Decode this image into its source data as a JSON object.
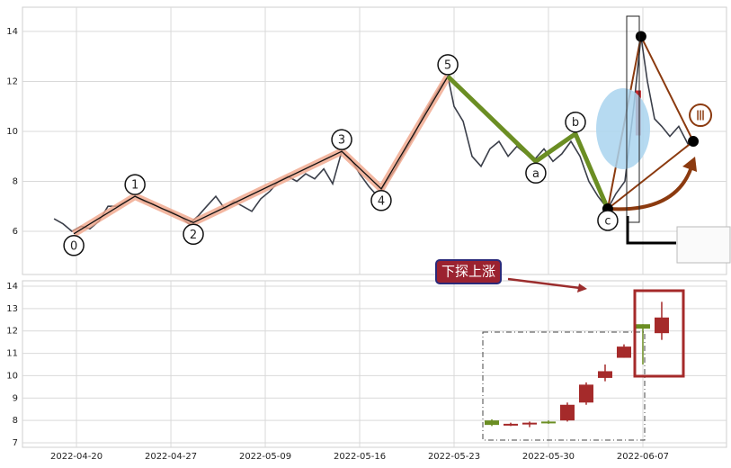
{
  "chart_data": [
    {
      "type": "line",
      "ylim": [
        4.27,
        14.97
      ],
      "yticks": [
        6,
        8,
        10,
        12,
        14
      ],
      "grid": true,
      "series": [
        {
          "color": "#3b3f4a",
          "x": [
            -1.19,
            -0.71,
            -0.24,
            0.24,
            0.71,
            1.19,
            1.67,
            2.14,
            2.62,
            3.1,
            3.57,
            4.05,
            4.52,
            5,
            5.48,
            5.95,
            6.43,
            6.9,
            7.38,
            7.86,
            8.33,
            8.81,
            9.29,
            9.76,
            10.24,
            10.71,
            11.19,
            11.67,
            12.14,
            12.62,
            13.1,
            13.57,
            14.05,
            14.52,
            15,
            15.48,
            15.95,
            16.43,
            16.9,
            17.38,
            17.86,
            18.33,
            18.81,
            19.29,
            19.67,
            20,
            20.48,
            20.95,
            21.43,
            21.9,
            22.38,
            22.86,
            23.33,
            23.81,
            24.29,
            24.76,
            25.24,
            25.71,
            26.19,
            26.67,
            27.14,
            27.62,
            28.14,
            28.57,
            29.05,
            29.52,
            29.9,
            30.24,
            30.62,
            31,
            31.43,
            31.9,
            32.38,
            32.67
          ],
          "values": [
            6.5,
            6.3,
            6.0,
            6.2,
            6.1,
            6.4,
            7.0,
            7.0,
            7.2,
            7.4,
            7.2,
            7.1,
            6.9,
            6.8,
            6.6,
            6.3,
            6.6,
            7.0,
            7.4,
            6.9,
            7.2,
            7.0,
            6.8,
            7.3,
            7.6,
            8.0,
            8.2,
            8.0,
            8.3,
            8.1,
            8.5,
            7.9,
            9.2,
            8.9,
            8.3,
            7.8,
            7.4,
            8.0,
            8.5,
            9.2,
            9.8,
            10.6,
            11.2,
            11.8,
            12.2,
            11.0,
            10.4,
            9.0,
            8.6,
            9.3,
            9.6,
            9.0,
            9.4,
            9.1,
            8.9,
            9.3,
            8.8,
            9.1,
            9.6,
            9.0,
            8.0,
            7.4,
            6.9,
            7.5,
            8.0,
            11.0,
            13.8,
            12.0,
            10.5,
            10.2,
            9.8,
            10.2,
            9.5,
            9.6
          ]
        }
      ],
      "waves": [
        {
          "label": "0",
          "x": -0.14,
          "y": 5.9
        },
        {
          "label": "1",
          "x": 3.1,
          "y": 7.4
        },
        {
          "label": "2",
          "x": 6.19,
          "y": 6.35
        },
        {
          "label": "3",
          "x": 14.05,
          "y": 9.2
        },
        {
          "label": "4",
          "x": 16.14,
          "y": 7.7
        },
        {
          "label": "5",
          "x": 19.67,
          "y": 12.2
        },
        {
          "label": "a",
          "x": 24.33,
          "y": 8.8
        },
        {
          "label": "b",
          "x": 26.43,
          "y": 9.9
        },
        {
          "label": "c",
          "x": 28.14,
          "y": 6.9
        }
      ],
      "impulse_color": "#f0a58a",
      "correction_color": "#6b8e23",
      "projection": {
        "color": "#8b3a0f",
        "label": "Ⅲ",
        "x": [
          28.14,
          29.9,
          32.67
        ],
        "values": [
          6.9,
          13.8,
          9.6
        ]
      }
    },
    {
      "type": "candlestick",
      "xlim": [
        -2.86,
        34.43
      ],
      "xticks": [
        {
          "value": 0,
          "label": "2022-04-20"
        },
        {
          "value": 5,
          "label": "2022-04-27"
        },
        {
          "value": 10,
          "label": "2022-05-09"
        },
        {
          "value": 15,
          "label": "2022-05-16"
        },
        {
          "value": 20,
          "label": "2022-05-23"
        },
        {
          "value": 25,
          "label": "2022-05-30"
        },
        {
          "value": 30,
          "label": "2022-06-07"
        }
      ],
      "ylim": [
        6.8,
        14.24
      ],
      "yticks": [
        7,
        8,
        9,
        10,
        11,
        12,
        13,
        14
      ],
      "grid": true,
      "x": [
        22,
        23,
        24,
        25,
        26,
        27,
        28,
        29,
        30,
        31
      ],
      "open": [
        8.0,
        7.8,
        7.85,
        7.95,
        8.0,
        8.8,
        9.9,
        10.8,
        12.3,
        11.9
      ],
      "high": [
        8.05,
        7.9,
        7.95,
        8.0,
        8.8,
        9.7,
        10.5,
        11.4,
        12.3,
        13.3
      ],
      "low": [
        7.75,
        7.75,
        7.7,
        7.85,
        7.95,
        8.7,
        9.75,
        10.8,
        10.5,
        11.6
      ],
      "close": [
        7.8,
        7.85,
        7.9,
        7.9,
        8.7,
        9.6,
        10.2,
        11.3,
        12.1,
        12.6
      ],
      "up_color": "#a52a2a",
      "down_color": "#6b8e23",
      "annotation": "下探上涨"
    }
  ]
}
